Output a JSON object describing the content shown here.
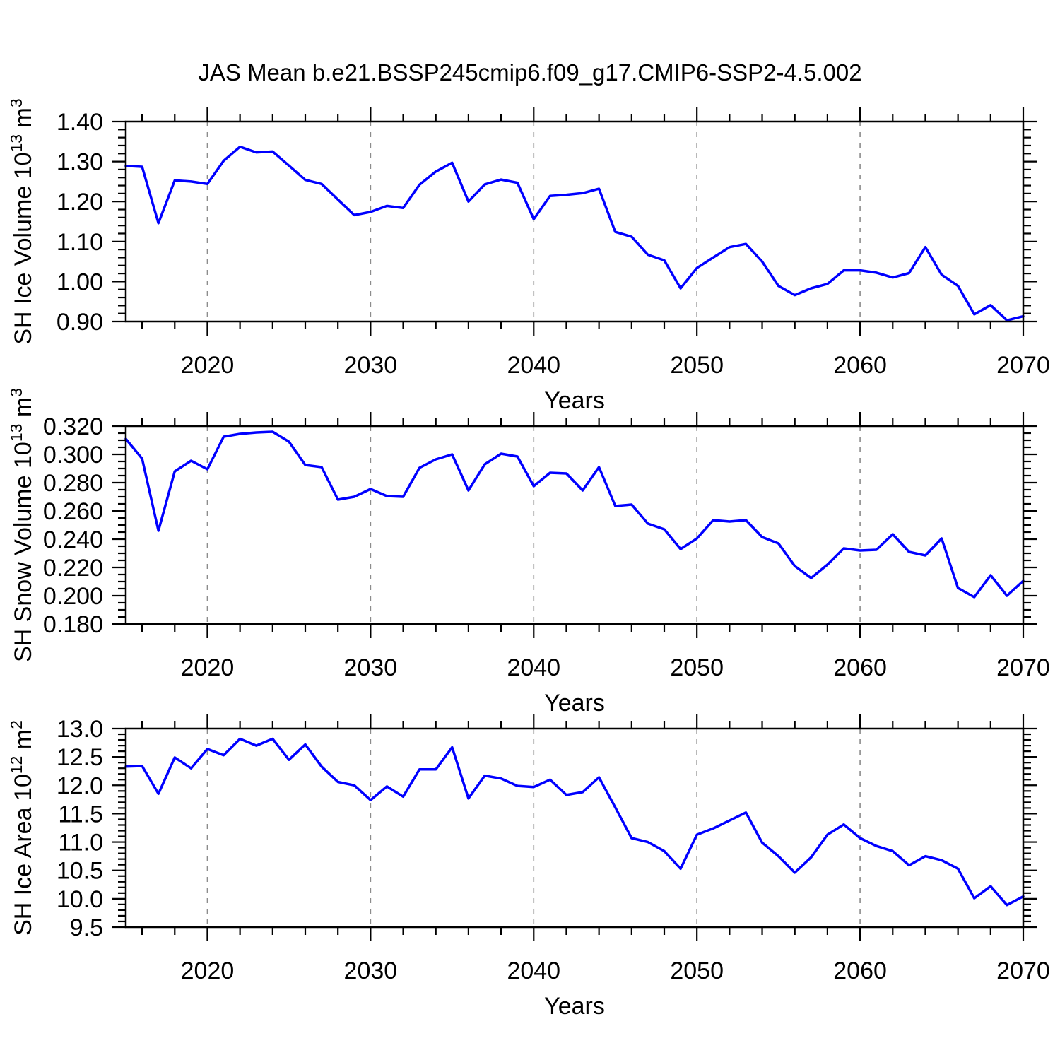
{
  "title": "JAS Mean b.e21.BSSP245cmip6.f09_g17.CMIP6-SSP2-4.5.002",
  "colors": {
    "line": "#0000ff",
    "grid": "#8c8c8c",
    "axis": "#000000",
    "background": "#ffffff"
  },
  "x_axis": {
    "label": "Years",
    "start_year": 2015,
    "end_year": 2070,
    "tick_labels": [
      "2020",
      "2030",
      "2040",
      "2050",
      "2060",
      "2070"
    ],
    "minor_tick_step_years": 2,
    "gridline_years": [
      2020,
      2030,
      2040,
      2050,
      2060
    ]
  },
  "chart_data": [
    {
      "type": "line",
      "name": "sh-ice-volume",
      "ylabel": "SH Ice Volume 10¹³ m³",
      "ylabel_parts": {
        "base": "SH Ice Volume 10",
        "exponent": "13",
        "unit": "m",
        "unit_exponent": "3"
      },
      "xlabel": "Years",
      "ylim": [
        0.9,
        1.4
      ],
      "ytick_step": 0.1,
      "yminor_step": 0.02,
      "y_decimals": 2,
      "x": [
        2015,
        2016,
        2017,
        2018,
        2019,
        2020,
        2021,
        2022,
        2023,
        2024,
        2025,
        2026,
        2027,
        2028,
        2029,
        2030,
        2031,
        2032,
        2033,
        2034,
        2035,
        2036,
        2037,
        2038,
        2039,
        2040,
        2041,
        2042,
        2043,
        2044,
        2045,
        2046,
        2047,
        2048,
        2049,
        2050,
        2051,
        2052,
        2053,
        2054,
        2055,
        2056,
        2057,
        2058,
        2059,
        2060,
        2061,
        2062,
        2063,
        2064,
        2065,
        2066,
        2067,
        2068,
        2069,
        2070
      ],
      "values": [
        1.289,
        1.287,
        1.146,
        1.253,
        1.25,
        1.244,
        1.302,
        1.337,
        1.323,
        1.325,
        1.29,
        1.254,
        1.244,
        1.205,
        1.166,
        1.174,
        1.189,
        1.184,
        1.242,
        1.275,
        1.297,
        1.2,
        1.243,
        1.255,
        1.247,
        1.156,
        1.214,
        1.217,
        1.221,
        1.232,
        1.124,
        1.112,
        1.067,
        1.053,
        0.983,
        1.034,
        1.06,
        1.086,
        1.094,
        1.05,
        0.989,
        0.966,
        0.983,
        0.994,
        1.028,
        1.028,
        1.022,
        1.01,
        1.021,
        1.086,
        1.017,
        0.989,
        0.918,
        0.941,
        0.903,
        0.913
      ]
    },
    {
      "type": "line",
      "name": "sh-snow-volume",
      "ylabel": "SH Snow Volume 10¹³ m³",
      "ylabel_parts": {
        "base": "SH Snow Volume 10",
        "exponent": "13",
        "unit": "m",
        "unit_exponent": "3"
      },
      "xlabel": "Years",
      "ylim": [
        0.18,
        0.32
      ],
      "ytick_step": 0.02,
      "yminor_step": 0.005,
      "y_decimals": 3,
      "x": [
        2015,
        2016,
        2017,
        2018,
        2019,
        2020,
        2021,
        2022,
        2023,
        2024,
        2025,
        2026,
        2027,
        2028,
        2029,
        2030,
        2031,
        2032,
        2033,
        2034,
        2035,
        2036,
        2037,
        2038,
        2039,
        2040,
        2041,
        2042,
        2043,
        2044,
        2045,
        2046,
        2047,
        2048,
        2049,
        2050,
        2051,
        2052,
        2053,
        2054,
        2055,
        2056,
        2057,
        2058,
        2059,
        2060,
        2061,
        2062,
        2063,
        2064,
        2065,
        2066,
        2067,
        2068,
        2069,
        2070
      ],
      "values": [
        0.311,
        0.297,
        0.246,
        0.288,
        0.2955,
        0.2895,
        0.3125,
        0.3145,
        0.3155,
        0.316,
        0.309,
        0.2925,
        0.291,
        0.268,
        0.27,
        0.2755,
        0.2705,
        0.27,
        0.2905,
        0.2965,
        0.3,
        0.2745,
        0.293,
        0.3005,
        0.2985,
        0.2775,
        0.287,
        0.2865,
        0.2745,
        0.291,
        0.2635,
        0.2645,
        0.251,
        0.247,
        0.233,
        0.2405,
        0.2535,
        0.2525,
        0.2535,
        0.2415,
        0.237,
        0.221,
        0.2125,
        0.222,
        0.2335,
        0.232,
        0.2325,
        0.2435,
        0.231,
        0.2285,
        0.2405,
        0.2055,
        0.199,
        0.2145,
        0.2,
        0.2105
      ]
    },
    {
      "type": "line",
      "name": "sh-ice-area",
      "ylabel": "SH Ice Area 10¹² m²",
      "ylabel_parts": {
        "base": "SH Ice Area 10",
        "exponent": "12",
        "unit": "m",
        "unit_exponent": "2"
      },
      "xlabel": "Years",
      "ylim": [
        9.5,
        13.0
      ],
      "ytick_step": 0.5,
      "yminor_step": 0.1,
      "y_decimals": 1,
      "x": [
        2015,
        2016,
        2017,
        2018,
        2019,
        2020,
        2021,
        2022,
        2023,
        2024,
        2025,
        2026,
        2027,
        2028,
        2029,
        2030,
        2031,
        2032,
        2033,
        2034,
        2035,
        2036,
        2037,
        2038,
        2039,
        2040,
        2041,
        2042,
        2043,
        2044,
        2045,
        2046,
        2047,
        2048,
        2049,
        2050,
        2051,
        2052,
        2053,
        2054,
        2055,
        2056,
        2057,
        2058,
        2059,
        2060,
        2061,
        2062,
        2063,
        2064,
        2065,
        2066,
        2067,
        2068,
        2069,
        2070
      ],
      "values": [
        12.33,
        12.34,
        11.85,
        12.49,
        12.3,
        12.64,
        12.53,
        12.82,
        12.7,
        12.82,
        12.45,
        12.72,
        12.33,
        12.06,
        12.0,
        11.74,
        11.98,
        11.8,
        12.28,
        12.28,
        12.67,
        11.77,
        12.17,
        12.12,
        11.99,
        11.97,
        12.1,
        11.83,
        11.88,
        12.14,
        11.61,
        11.07,
        11.0,
        10.84,
        10.53,
        11.13,
        11.24,
        11.38,
        11.52,
        10.99,
        10.75,
        10.46,
        10.73,
        11.13,
        11.31,
        11.07,
        10.93,
        10.84,
        10.59,
        10.75,
        10.68,
        10.53,
        10.01,
        10.22,
        9.89,
        10.04
      ]
    }
  ]
}
